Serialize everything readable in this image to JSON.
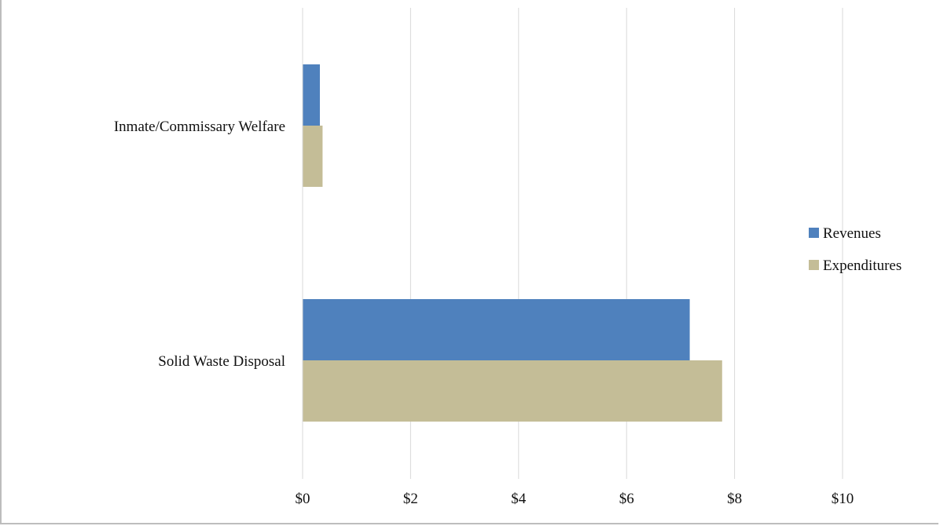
{
  "chart_data": {
    "type": "bar",
    "orientation": "horizontal",
    "title": "",
    "xlabel": "",
    "ylabel": "",
    "categories": [
      "Inmate/Commissary Welfare",
      "Solid Waste Disposal"
    ],
    "series": [
      {
        "name": "Revenues",
        "color": "#4f81bd",
        "values": [
          0.32,
          7.17
        ]
      },
      {
        "name": "Expenditures",
        "color": "#c4bd97",
        "values": [
          0.37,
          7.77
        ]
      }
    ],
    "xlim": [
      0,
      10
    ],
    "x_ticks": [
      0,
      2,
      4,
      6,
      8,
      10
    ],
    "x_tick_labels": [
      "$0",
      "$2",
      "$4",
      "$6",
      "$8",
      "$10"
    ],
    "grid": "vertical",
    "legend_position": "right"
  }
}
